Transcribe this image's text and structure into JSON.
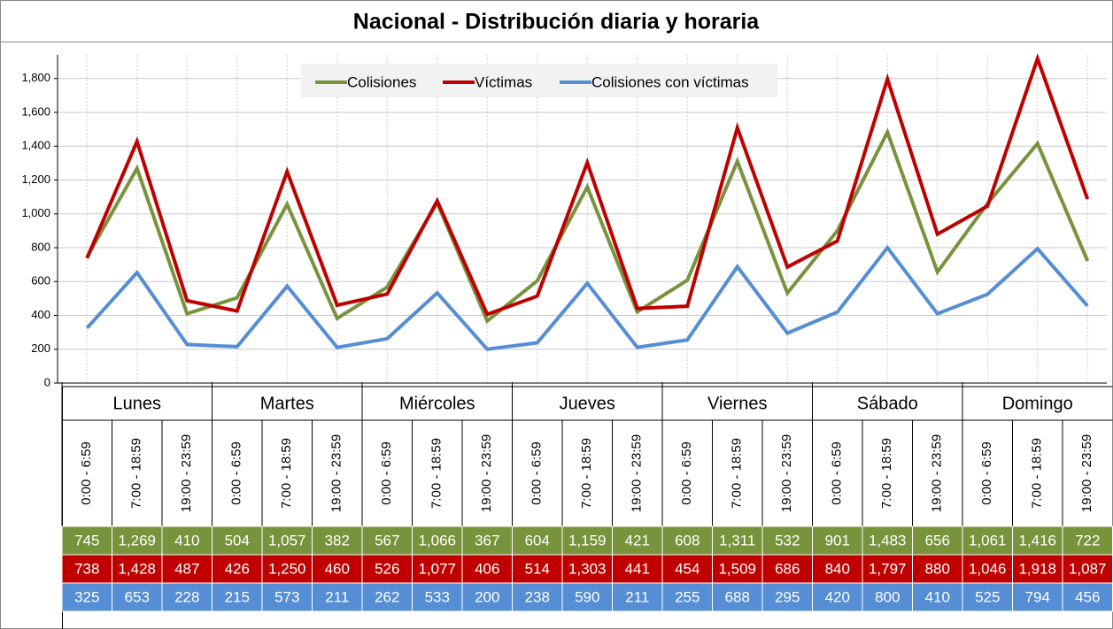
{
  "chart_data": {
    "type": "line",
    "title": "Nacional - Distribución diaria y horaria",
    "groups": [
      "Lunes",
      "Martes",
      "Miércoles",
      "Jueves",
      "Viernes",
      "Sábado",
      "Domingo"
    ],
    "categories": [
      "0:00 - 6:59",
      "7:00 - 18:59",
      "19:00 - 23:59",
      "0:00 - 6:59",
      "7:00 - 18:59",
      "19:00 - 23:59",
      "0:00 - 6:59",
      "7:00 - 18:59",
      "19:00 - 23:59",
      "0:00 - 6:59",
      "7:00 - 18:59",
      "19:00 - 23:59",
      "0:00 - 6:59",
      "7:00 - 18:59",
      "19:00 - 23:59",
      "0:00 - 6:59",
      "7:00 - 18:59",
      "19:00 - 23:59",
      "0:00 - 6:59",
      "7:00 - 18:59",
      "19:00 - 23:59"
    ],
    "series": [
      {
        "name": "Colisiones",
        "color": "#77933c",
        "values": [
          745,
          1269,
          410,
          504,
          1057,
          382,
          567,
          1066,
          367,
          604,
          1159,
          421,
          608,
          1311,
          532,
          901,
          1483,
          656,
          1061,
          1416,
          722
        ],
        "value_labels": [
          "745",
          "1,269",
          "410",
          "504",
          "1,057",
          "382",
          "567",
          "1,066",
          "367",
          "604",
          "1,159",
          "421",
          "608",
          "1,311",
          "532",
          "901",
          "1,483",
          "656",
          "1,061",
          "1,416",
          "722"
        ]
      },
      {
        "name": "Víctimas",
        "color": "#c00000",
        "values": [
          738,
          1428,
          487,
          426,
          1250,
          460,
          526,
          1077,
          406,
          514,
          1303,
          441,
          454,
          1509,
          686,
          840,
          1797,
          880,
          1046,
          1918,
          1087
        ],
        "value_labels": [
          "738",
          "1,428",
          "487",
          "426",
          "1,250",
          "460",
          "526",
          "1,077",
          "406",
          "514",
          "1,303",
          "441",
          "454",
          "1,509",
          "686",
          "840",
          "1,797",
          "880",
          "1,046",
          "1,918",
          "1,087"
        ]
      },
      {
        "name": "Colisiones con víctimas",
        "color": "#558ed5",
        "values": [
          325,
          653,
          228,
          215,
          573,
          211,
          262,
          533,
          200,
          238,
          590,
          211,
          255,
          688,
          295,
          420,
          800,
          410,
          525,
          794,
          456
        ],
        "value_labels": [
          "325",
          "653",
          "228",
          "215",
          "573",
          "211",
          "262",
          "533",
          "200",
          "238",
          "590",
          "211",
          "255",
          "688",
          "295",
          "420",
          "800",
          "410",
          "525",
          "794",
          "456"
        ]
      }
    ],
    "ylim": [
      0,
      1940
    ],
    "yticks": [
      0,
      200,
      400,
      600,
      800,
      {
        "value": 1000,
        "label": "1,000"
      },
      {
        "value": 1200,
        "label": "1,200"
      },
      {
        "value": 1400,
        "label": "1,400"
      },
      {
        "value": 1600,
        "label": "1,600"
      },
      {
        "value": 1800,
        "label": "1,800"
      }
    ],
    "grid": true,
    "legend": "top"
  }
}
